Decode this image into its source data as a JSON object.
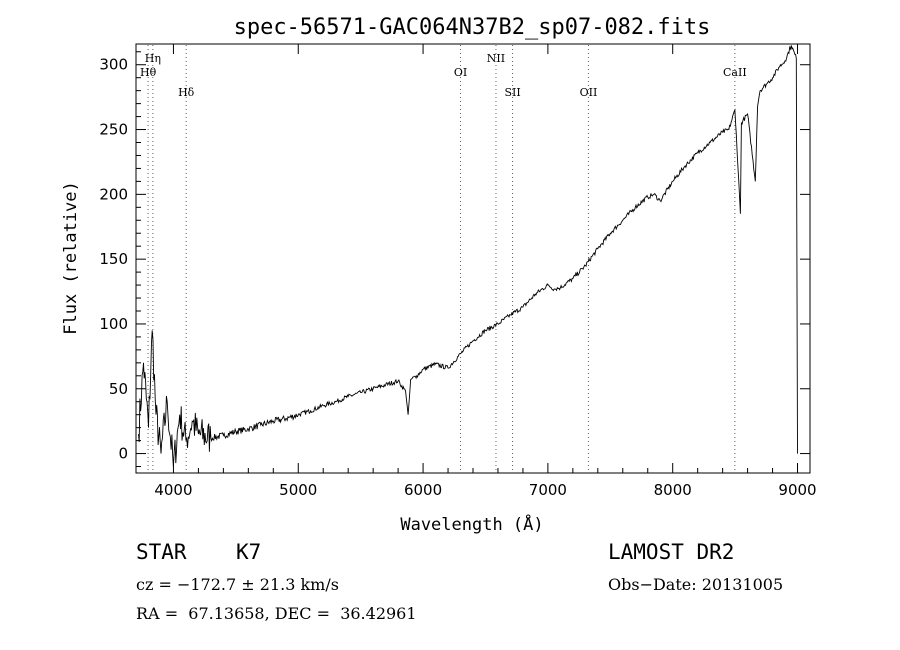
{
  "chart_data": {
    "type": "line",
    "title": "spec-56571-GAC064N37B2_sp07-082.fits",
    "xlabel": "Wavelength (Å)",
    "ylabel": "Flux (relative)",
    "xlim": [
      3700,
      9100
    ],
    "ylim": [
      -15,
      316
    ],
    "xticks": [
      4000,
      5000,
      6000,
      7000,
      8000,
      9000
    ],
    "yticks": [
      0,
      50,
      100,
      150,
      200,
      250,
      300
    ],
    "grid": false,
    "line_color": "#000000",
    "marker_color": "#cc3333",
    "spectrum": {
      "x": [
        3720,
        3760,
        3800,
        3830,
        3860,
        3900,
        3950,
        4000,
        4050,
        4100,
        4150,
        4200,
        4300,
        4400,
        4500,
        4600,
        4700,
        4800,
        4900,
        5000,
        5100,
        5200,
        5300,
        5400,
        5500,
        5600,
        5700,
        5800,
        5860,
        5880,
        5890,
        5900,
        5950,
        6000,
        6100,
        6200,
        6300,
        6400,
        6500,
        6600,
        6700,
        6800,
        6900,
        7000,
        7050,
        7100,
        7200,
        7300,
        7400,
        7500,
        7600,
        7700,
        7800,
        7850,
        7900,
        8000,
        8100,
        8200,
        8300,
        8400,
        8450,
        8498,
        8510,
        8542,
        8550,
        8600,
        8662,
        8680,
        8700,
        8750,
        8800,
        8850,
        8900,
        8950,
        8990,
        9000
      ],
      "y": [
        15,
        70,
        20,
        95,
        30,
        0,
        40,
        -10,
        30,
        10,
        25,
        15,
        12,
        14,
        17,
        19,
        22,
        25,
        27,
        30,
        33,
        37,
        40,
        44,
        47,
        50,
        53,
        56,
        48,
        30,
        42,
        57,
        60,
        65,
        69,
        66,
        77,
        87,
        95,
        100,
        107,
        113,
        123,
        130,
        127,
        128,
        135,
        145,
        158,
        170,
        180,
        190,
        198,
        200,
        195,
        210,
        222,
        232,
        240,
        248,
        250,
        265,
        245,
        185,
        255,
        262,
        210,
        268,
        280,
        285,
        290,
        298,
        303,
        315,
        305,
        0
      ]
    },
    "lines": [
      {
        "name": "Hη",
        "wavelength": 3835
      },
      {
        "name": "Hθ",
        "wavelength": 3797
      },
      {
        "name": "Hδ",
        "wavelength": 4102
      },
      {
        "name": "OI",
        "wavelength": 6300
      },
      {
        "name": "NII",
        "wavelength": 6584
      },
      {
        "name": "SII",
        "wavelength": 6717
      },
      {
        "name": "OII",
        "wavelength": 7325
      },
      {
        "name": "CaII",
        "wavelength": 8498
      }
    ]
  },
  "info": {
    "class_label": "STAR",
    "subclass_label": "K7",
    "cz_text": "cz = −172.7 ± 21.3 km/s",
    "radec_text": "RA =  67.13658, DEC =  36.42961",
    "survey_label": "LAMOST DR2",
    "obsdate_text": "Obs−Date: 20131005"
  }
}
